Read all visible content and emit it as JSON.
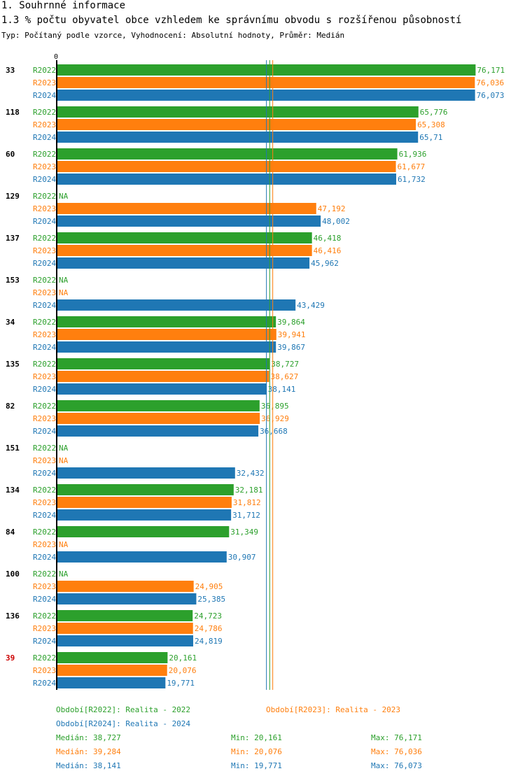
{
  "header": {
    "title": "1. Souhrnné informace",
    "subtitle": "1.3 % počtu obyvatel obce vzhledem ke správnímu obvodu s rozšířenou působností",
    "meta": "Typ: Počítaný podle vzorce, Vyhodnocení: Absolutní hodnoty, Průměr: Medián"
  },
  "colors": {
    "R2022": "#2ca02c",
    "R2023": "#ff7f0e",
    "R2024": "#1f77b4",
    "highlight": "#cc0000",
    "text": "#000000"
  },
  "chart_data": {
    "type": "bar",
    "orientation": "horizontal",
    "axis_zero_label": "0",
    "xlim": [
      0,
      76.5
    ],
    "na_label": "NA",
    "series_names": [
      "R2022",
      "R2023",
      "R2024"
    ],
    "highlight_category": "39",
    "categories": [
      "33",
      "118",
      "60",
      "129",
      "137",
      "153",
      "34",
      "135",
      "82",
      "151",
      "134",
      "84",
      "100",
      "136",
      "39"
    ],
    "series": [
      {
        "name": "R2022",
        "values": [
          76.171,
          65.776,
          61.936,
          null,
          46.418,
          null,
          39.864,
          38.727,
          36.895,
          null,
          32.181,
          31.349,
          null,
          24.723,
          20.161
        ],
        "labels": [
          "76,171",
          "65,776",
          "61,936",
          "NA",
          "46,418",
          "NA",
          "39,864",
          "38,727",
          "36,895",
          "NA",
          "32,181",
          "31,349",
          "NA",
          "24,723",
          "20,161"
        ]
      },
      {
        "name": "R2023",
        "values": [
          76.036,
          65.308,
          61.677,
          47.192,
          46.416,
          null,
          39.941,
          38.627,
          36.929,
          null,
          31.812,
          null,
          24.905,
          24.786,
          20.076
        ],
        "labels": [
          "76,036",
          "65,308",
          "61,677",
          "47,192",
          "46,416",
          "NA",
          "39,941",
          "38,627",
          "36,929",
          "NA",
          "31,812",
          "NA",
          "24,905",
          "24,786",
          "20,076"
        ]
      },
      {
        "name": "R2024",
        "values": [
          76.073,
          65.71,
          61.732,
          48.002,
          45.962,
          43.429,
          39.867,
          38.141,
          36.668,
          32.432,
          31.712,
          30.907,
          25.385,
          24.819,
          19.771
        ],
        "labels": [
          "76,073",
          "65,71",
          "61,732",
          "48,002",
          "45,962",
          "43,429",
          "39,867",
          "38,141",
          "36,668",
          "32,432",
          "31,712",
          "30,907",
          "25,385",
          "24,819",
          "19,771"
        ]
      }
    ],
    "median_lines": {
      "R2022": 38.727,
      "R2023": 39.284,
      "R2024": 38.141
    }
  },
  "legend": {
    "periods": [
      {
        "series": "R2022",
        "text": "Období[R2022]: Realita - 2022"
      },
      {
        "series": "R2023",
        "text": "Období[R2023]: Realita - 2023"
      },
      {
        "series": "R2024",
        "text": "Období[R2024]: Realita - 2024"
      }
    ],
    "stats": [
      {
        "series": "R2022",
        "median": "Medián: 38,727",
        "min": "Min: 20,161",
        "max": "Max: 76,171"
      },
      {
        "series": "R2023",
        "median": "Medián: 39,284",
        "min": "Min: 20,076",
        "max": "Max: 76,036"
      },
      {
        "series": "R2024",
        "median": "Medián: 38,141",
        "min": "Min: 19,771",
        "max": "Max: 76,073"
      }
    ]
  }
}
